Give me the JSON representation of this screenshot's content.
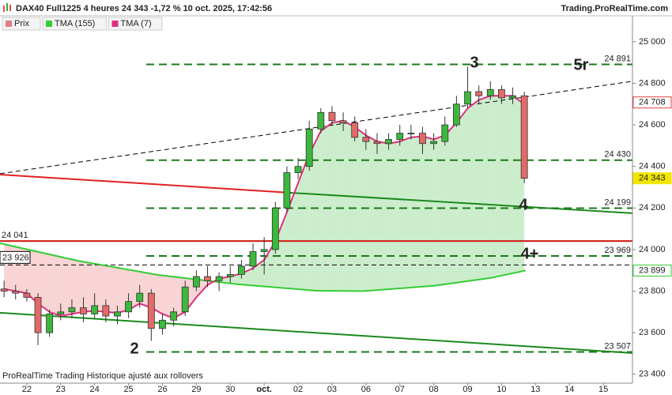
{
  "chart_data": {
    "type": "candlestick",
    "title": "DAX40 Full1225 4 heures 24 343 -1,72 % 10 oct. 2025, 17:42:56",
    "source": "Trading.ProRealTime.com",
    "footnote": "ProRealTime Trading  Historique ajusté aux rollovers",
    "xlim": [
      -0.79,
      17.86
    ],
    "ylim": [
      23357,
      25125
    ],
    "xticks": [
      {
        "value": 0,
        "label": "22"
      },
      {
        "value": 1,
        "label": "23"
      },
      {
        "value": 2,
        "label": "24"
      },
      {
        "value": 3,
        "label": "25"
      },
      {
        "value": 4,
        "label": "26"
      },
      {
        "value": 5,
        "label": "29"
      },
      {
        "value": 6,
        "label": "30"
      },
      {
        "value": 7,
        "label": "oct."
      },
      {
        "value": 8,
        "label": "02"
      },
      {
        "value": 9,
        "label": "03"
      },
      {
        "value": 10,
        "label": "06"
      },
      {
        "value": 11,
        "label": "07"
      },
      {
        "value": 12,
        "label": "08"
      },
      {
        "value": 13,
        "label": "09"
      },
      {
        "value": 14,
        "label": "10"
      },
      {
        "value": 15,
        "label": "13"
      },
      {
        "value": 16,
        "label": "14"
      },
      {
        "value": 17,
        "label": "15"
      }
    ],
    "yticks": [
      {
        "value": 25000,
        "label": "25 000"
      },
      {
        "value": 24800,
        "label": "24 800"
      },
      {
        "value": 24600,
        "label": "24 600"
      },
      {
        "value": 24400,
        "label": "24 400"
      },
      {
        "value": 24200,
        "label": "24 200"
      },
      {
        "value": 24000,
        "label": "24 000"
      },
      {
        "value": 23800,
        "label": "23 800"
      },
      {
        "value": 23600,
        "label": "23 600"
      },
      {
        "value": 23400,
        "label": "23 400"
      }
    ],
    "up_color": "#3cb83c",
    "down_color": "#e36a6a",
    "series": [
      {
        "name": "Prix",
        "color": "#e08080",
        "x": [
          -0.67,
          -0.33,
          0,
          0.33,
          0.67,
          1,
          1.33,
          1.67,
          2,
          2.33,
          2.67,
          3,
          3.33,
          3.67,
          4,
          4.33,
          4.67,
          5,
          5.33,
          5.67,
          6,
          6.33,
          6.67,
          7,
          7.33,
          7.67,
          8,
          8.33,
          8.67,
          9,
          9.33,
          9.67,
          10,
          10.33,
          10.67,
          11,
          11.33,
          11.67,
          12,
          12.33,
          12.67,
          13,
          13.33,
          13.67,
          14,
          14.33,
          14.67
        ],
        "open": [
          23810,
          23800,
          23790,
          23770,
          23600,
          23690,
          23700,
          23720,
          23690,
          23730,
          23680,
          23700,
          23750,
          23790,
          23620,
          23660,
          23700,
          23820,
          23870,
          23850,
          23870,
          23880,
          23920,
          23990,
          24000,
          24200,
          24370,
          24400,
          24580,
          24660,
          24620,
          24610,
          24540,
          24520,
          24510,
          24530,
          24560,
          24560,
          24510,
          24520,
          24600,
          24700,
          24760,
          24740,
          24770,
          24730,
          24740
        ],
        "high": [
          23850,
          23830,
          23810,
          23790,
          23710,
          23740,
          23760,
          23770,
          23790,
          23760,
          23730,
          23790,
          23830,
          23810,
          23690,
          23720,
          23850,
          23900,
          23920,
          23890,
          23920,
          23950,
          24030,
          24060,
          24230,
          24400,
          24440,
          24620,
          24680,
          24690,
          24660,
          24640,
          24580,
          24560,
          24560,
          24600,
          24600,
          24590,
          24560,
          24640,
          24740,
          24880,
          24790,
          24810,
          24790,
          24780,
          24760
        ],
        "low": [
          23770,
          23760,
          23750,
          23540,
          23580,
          23660,
          23670,
          23650,
          23670,
          23650,
          23640,
          23670,
          23720,
          23560,
          23590,
          23630,
          23680,
          23800,
          23820,
          23800,
          23840,
          23860,
          23900,
          23880,
          23980,
          24180,
          24340,
          24380,
          24560,
          24600,
          24570,
          24520,
          24480,
          24460,
          24480,
          24500,
          24530,
          24460,
          24480,
          24500,
          24590,
          24680,
          24700,
          24720,
          24700,
          24700,
          24320
        ],
        "close": [
          23800,
          23790,
          23770,
          23600,
          23690,
          23700,
          23720,
          23690,
          23730,
          23680,
          23700,
          23750,
          23790,
          23620,
          23660,
          23700,
          23820,
          23870,
          23850,
          23870,
          23880,
          23920,
          23990,
          24000,
          24200,
          24370,
          24400,
          24580,
          24660,
          24620,
          24610,
          24540,
          24520,
          24510,
          24530,
          24560,
          24560,
          24510,
          24520,
          24600,
          24700,
          24760,
          24740,
          24770,
          24730,
          24740,
          24343
        ]
      },
      {
        "name": "TMA (155)",
        "color": "#33cc33",
        "x": [
          -0.79,
          1.54,
          3.87,
          6.2,
          8.53,
          9.93,
          12.03,
          13.66,
          14.71
        ],
        "values": [
          24030,
          23945,
          23878,
          23833,
          23802,
          23800,
          23826,
          23863,
          23899
        ]
      },
      {
        "name": "TMA (7)",
        "color": "#e0307a",
        "x": [
          -0.67,
          -0.33,
          0,
          0.33,
          0.67,
          1,
          1.33,
          1.67,
          2,
          2.33,
          2.67,
          3,
          3.33,
          3.67,
          4,
          4.33,
          4.67,
          5,
          5.33,
          5.67,
          6,
          6.33,
          6.67,
          7,
          7.33,
          7.67,
          8,
          8.33,
          8.67,
          9,
          9.33,
          9.67,
          10,
          10.33,
          10.67,
          11,
          11.33,
          11.67,
          12,
          12.33,
          12.67,
          13,
          13.33,
          13.67,
          14,
          14.33,
          14.67
        ],
        "values": [
          23810,
          23800,
          23790,
          23740,
          23700,
          23680,
          23690,
          23700,
          23705,
          23700,
          23695,
          23710,
          23740,
          23720,
          23690,
          23670,
          23700,
          23770,
          23830,
          23860,
          23870,
          23885,
          23910,
          23950,
          24040,
          24180,
          24320,
          24460,
          24570,
          24610,
          24620,
          24590,
          24550,
          24520,
          24510,
          24520,
          24540,
          24545,
          24530,
          24550,
          24610,
          24680,
          24720,
          24740,
          24740,
          24740,
          24700
        ]
      }
    ],
    "levels": [
      {
        "value": 24891,
        "label": "24 891",
        "color": "#1a7a1a"
      },
      {
        "value": 24430,
        "label": "24 430",
        "color": "#1a7a1a"
      },
      {
        "value": 24199,
        "label": "24 199",
        "color": "#1a7a1a"
      },
      {
        "value": 23969,
        "label": "23 969",
        "color": "#1a7a1a"
      },
      {
        "value": 23507,
        "label": "23 507",
        "color": "#1a7a1a"
      }
    ],
    "left_levels": [
      {
        "value": 24041,
        "label": "24 041",
        "color": "#e02020"
      },
      {
        "value": 23926,
        "label": "23 926",
        "color": "#000000"
      }
    ],
    "axis_labels": [
      {
        "value": 24708,
        "label": "24 708",
        "color": "#e04040"
      },
      {
        "value": 24343,
        "label": "24 343",
        "color": "#f2e600"
      },
      {
        "value": 23899,
        "label": "23 899",
        "color": "#33cc33"
      }
    ],
    "trendlines": [
      {
        "color": "#000000",
        "dashed": true,
        "x": [
          -0.79,
          17.86
        ],
        "y": [
          24365,
          24810
        ]
      },
      {
        "color": "#e02020",
        "dashed": false,
        "x": [
          -0.79,
          7.72
        ],
        "y": [
          24361,
          24274
        ]
      },
      {
        "color": "#1a8a1a",
        "dashed": false,
        "x": [
          7.72,
          17.86
        ],
        "y": [
          24274,
          24175
        ]
      },
      {
        "color": "#1a8a1a",
        "dashed": false,
        "x": [
          -0.79,
          17.86
        ],
        "y": [
          23696,
          23502
        ]
      },
      {
        "color": "#1a8a1a",
        "dashed": false,
        "x": [
          -0.79,
          17.86
        ],
        "y": [
          24041,
          24041
        ]
      }
    ],
    "annotations": [
      {
        "text": "3",
        "color": "#1a7a1a"
      },
      {
        "text": "5r",
        "color": "#1a7a1a"
      },
      {
        "text": "4",
        "color": "#1a7a1a"
      },
      {
        "text": "4+",
        "color": "#1a7a1a"
      },
      {
        "text": "2",
        "color": "#1a7a1a"
      }
    ]
  }
}
